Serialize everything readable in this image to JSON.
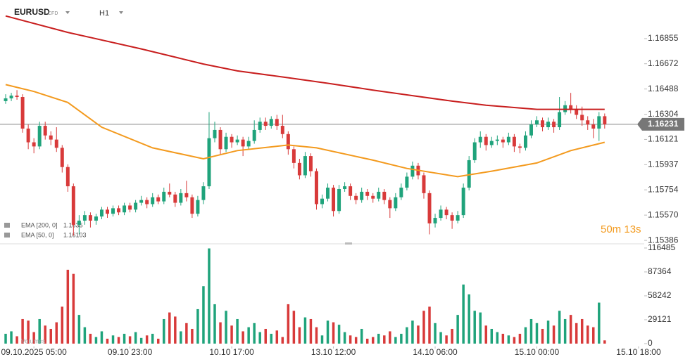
{
  "chart_data": {
    "type": "candlestick",
    "symbol": "EURUSD",
    "instrument_type": "CFD",
    "timeframe": "H1",
    "timer": "50m 13s",
    "last_price": 1.16231,
    "up_color": "#1fa37b",
    "down_color": "#d83a3a",
    "xlim": [
      -1,
      113
    ],
    "xticks": [
      {
        "value": 5,
        "label": "09.10.2025 05:00"
      },
      {
        "value": 22,
        "label": "09.10 23:00"
      },
      {
        "value": 40,
        "label": "10.10 17:00"
      },
      {
        "value": 58,
        "label": "13.10 12:00"
      },
      {
        "value": 76,
        "label": "14.10 06:00"
      },
      {
        "value": 94,
        "label": "15.10 00:00"
      },
      {
        "value": 112,
        "label": "15.10 18:00"
      }
    ],
    "ylim": [
      1.15361,
      1.17136
    ],
    "yticks": [
      1.16855,
      1.16672,
      1.16488,
      1.16304,
      1.16121,
      1.15937,
      1.15754,
      {
        "value": 1.1557,
        "label": "1.15570"
      },
      1.15386
    ],
    "ohlc": [
      [
        1.164,
        1.1645,
        1.1638,
        1.1642
      ],
      [
        1.1642,
        1.1646,
        1.164,
        1.1644
      ],
      [
        1.1644,
        1.1648,
        1.1641,
        1.1643
      ],
      [
        1.1643,
        1.1645,
        1.1617,
        1.162
      ],
      [
        1.162,
        1.1623,
        1.1605,
        1.161
      ],
      [
        1.161,
        1.1613,
        1.1602,
        1.1607
      ],
      [
        1.1607,
        1.1625,
        1.1605,
        1.1622
      ],
      [
        1.1622,
        1.1625,
        1.1612,
        1.1615
      ],
      [
        1.1615,
        1.1618,
        1.1608,
        1.1612
      ],
      [
        1.1612,
        1.1621,
        1.1603,
        1.1606
      ],
      [
        1.1606,
        1.1608,
        1.1588,
        1.1592
      ],
      [
        1.1592,
        1.1594,
        1.1574,
        1.1578
      ],
      [
        1.1578,
        1.158,
        1.1542,
        1.155
      ],
      [
        1.155,
        1.1557,
        1.1543,
        1.1553
      ],
      [
        1.1553,
        1.156,
        1.155,
        1.1557
      ],
      [
        1.1557,
        1.1559,
        1.1548,
        1.1553
      ],
      [
        1.1553,
        1.1558,
        1.155,
        1.1556
      ],
      [
        1.1556,
        1.1563,
        1.1554,
        1.1561
      ],
      [
        1.1561,
        1.1563,
        1.1555,
        1.1558
      ],
      [
        1.1558,
        1.1564,
        1.1556,
        1.1562
      ],
      [
        1.1562,
        1.1564,
        1.1557,
        1.1559
      ],
      [
        1.1559,
        1.1566,
        1.1557,
        1.1564
      ],
      [
        1.1564,
        1.1566,
        1.1559,
        1.1561
      ],
      [
        1.1561,
        1.1568,
        1.1559,
        1.1566
      ],
      [
        1.1566,
        1.1571,
        1.1564,
        1.1568
      ],
      [
        1.1568,
        1.157,
        1.1562,
        1.1565
      ],
      [
        1.1565,
        1.1573,
        1.1563,
        1.157
      ],
      [
        1.157,
        1.1572,
        1.1565,
        1.1567
      ],
      [
        1.1567,
        1.1577,
        1.1565,
        1.1574
      ],
      [
        1.1574,
        1.158,
        1.157,
        1.1572
      ],
      [
        1.1572,
        1.1574,
        1.1563,
        1.1566
      ],
      [
        1.1566,
        1.1576,
        1.1564,
        1.1573
      ],
      [
        1.1573,
        1.1582,
        1.1567,
        1.157
      ],
      [
        1.157,
        1.1572,
        1.1555,
        1.1558
      ],
      [
        1.1558,
        1.1571,
        1.1556,
        1.1568
      ],
      [
        1.1568,
        1.1581,
        1.1565,
        1.1578
      ],
      [
        1.1578,
        1.1632,
        1.1576,
        1.1613
      ],
      [
        1.1613,
        1.1625,
        1.161,
        1.1619
      ],
      [
        1.1619,
        1.1621,
        1.1601,
        1.1605
      ],
      [
        1.1605,
        1.1617,
        1.1603,
        1.1614
      ],
      [
        1.1614,
        1.1616,
        1.1606,
        1.161
      ],
      [
        1.161,
        1.1615,
        1.1608,
        1.1612
      ],
      [
        1.1612,
        1.1614,
        1.16,
        1.1607
      ],
      [
        1.1607,
        1.1614,
        1.1605,
        1.1611
      ],
      [
        1.1611,
        1.1626,
        1.1609,
        1.1619
      ],
      [
        1.1619,
        1.1628,
        1.1617,
        1.1625
      ],
      [
        1.1625,
        1.1628,
        1.1619,
        1.1622
      ],
      [
        1.1622,
        1.1629,
        1.162,
        1.1627
      ],
      [
        1.1627,
        1.163,
        1.1619,
        1.1622
      ],
      [
        1.1622,
        1.163,
        1.1613,
        1.1616
      ],
      [
        1.1616,
        1.1618,
        1.1601,
        1.1605
      ],
      [
        1.1605,
        1.1607,
        1.1591,
        1.1595
      ],
      [
        1.1595,
        1.1598,
        1.1583,
        1.1586
      ],
      [
        1.1586,
        1.1603,
        1.1584,
        1.16
      ],
      [
        1.16,
        1.1602,
        1.1585,
        1.1589
      ],
      [
        1.1589,
        1.1591,
        1.1561,
        1.1565
      ],
      [
        1.1565,
        1.1572,
        1.1562,
        1.1569
      ],
      [
        1.1569,
        1.158,
        1.1567,
        1.1577
      ],
      [
        1.1577,
        1.1579,
        1.1556,
        1.156
      ],
      [
        1.156,
        1.1579,
        1.1558,
        1.1576
      ],
      [
        1.1576,
        1.1581,
        1.1574,
        1.1578
      ],
      [
        1.1578,
        1.158,
        1.1568,
        1.1571
      ],
      [
        1.1571,
        1.1573,
        1.1565,
        1.1568
      ],
      [
        1.1568,
        1.1577,
        1.1566,
        1.1574
      ],
      [
        1.1574,
        1.1576,
        1.1568,
        1.1571
      ],
      [
        1.1571,
        1.1573,
        1.1566,
        1.1569
      ],
      [
        1.1569,
        1.1577,
        1.1567,
        1.1574
      ],
      [
        1.1574,
        1.1576,
        1.1565,
        1.1568
      ],
      [
        1.1568,
        1.157,
        1.1555,
        1.1562
      ],
      [
        1.1562,
        1.1573,
        1.156,
        1.157
      ],
      [
        1.157,
        1.158,
        1.1568,
        1.1577
      ],
      [
        1.1577,
        1.1588,
        1.1575,
        1.1585
      ],
      [
        1.1585,
        1.1596,
        1.1583,
        1.1593
      ],
      [
        1.1593,
        1.1595,
        1.1583,
        1.1586
      ],
      [
        1.1586,
        1.1588,
        1.1569,
        1.1573
      ],
      [
        1.1573,
        1.1575,
        1.1543,
        1.1551
      ],
      [
        1.1551,
        1.1558,
        1.1548,
        1.1555
      ],
      [
        1.1555,
        1.1564,
        1.1553,
        1.1561
      ],
      [
        1.1561,
        1.1563,
        1.1554,
        1.1557
      ],
      [
        1.1557,
        1.1559,
        1.1547,
        1.1553
      ],
      [
        1.1553,
        1.156,
        1.1551,
        1.1557
      ],
      [
        1.1557,
        1.158,
        1.1555,
        1.1577
      ],
      [
        1.1577,
        1.16,
        1.1575,
        1.1597
      ],
      [
        1.1597,
        1.1613,
        1.1595,
        1.161
      ],
      [
        1.161,
        1.1618,
        1.1606,
        1.1614
      ],
      [
        1.1614,
        1.1616,
        1.1604,
        1.1608
      ],
      [
        1.1608,
        1.1614,
        1.1606,
        1.1611
      ],
      [
        1.1611,
        1.1615,
        1.1608,
        1.1612
      ],
      [
        1.1612,
        1.1614,
        1.1606,
        1.161
      ],
      [
        1.161,
        1.1617,
        1.1608,
        1.1614
      ],
      [
        1.1614,
        1.1616,
        1.1603,
        1.1607
      ],
      [
        1.1607,
        1.1609,
        1.1602,
        1.1606
      ],
      [
        1.1606,
        1.1618,
        1.1604,
        1.1615
      ],
      [
        1.1615,
        1.1626,
        1.1613,
        1.1623
      ],
      [
        1.1623,
        1.1629,
        1.1621,
        1.1626
      ],
      [
        1.1626,
        1.1628,
        1.1618,
        1.1621
      ],
      [
        1.1621,
        1.1628,
        1.1619,
        1.1625
      ],
      [
        1.1625,
        1.1627,
        1.1617,
        1.1621
      ],
      [
        1.1621,
        1.1643,
        1.1619,
        1.1632
      ],
      [
        1.1632,
        1.164,
        1.163,
        1.1637
      ],
      [
        1.1637,
        1.1646,
        1.1631,
        1.1634
      ],
      [
        1.1634,
        1.1637,
        1.1627,
        1.163
      ],
      [
        1.163,
        1.1636,
        1.1622,
        1.1626
      ],
      [
        1.1626,
        1.1629,
        1.1619,
        1.1623
      ],
      [
        1.1623,
        1.1627,
        1.1613,
        1.162
      ],
      [
        1.162,
        1.1632,
        1.1611,
        1.1629
      ],
      [
        1.1629,
        1.1631,
        1.162,
        1.16231
      ]
    ],
    "ema": [
      {
        "name": "EMA [200, 0]",
        "last": 1.1635,
        "color": "#c81e1e",
        "x": [
          0,
          11,
          24,
          35,
          41,
          50,
          57,
          65,
          72,
          79,
          85,
          94,
          106
        ],
        "values": [
          1.1702,
          1.169,
          1.1678,
          1.1667,
          1.1662,
          1.1657,
          1.1653,
          1.1648,
          1.1644,
          1.164,
          1.1637,
          1.1634,
          1.1634
        ]
      },
      {
        "name": "EMA [50, 0]",
        "last": 1.16103,
        "color": "#f39a1e",
        "x": [
          0,
          5,
          11,
          17,
          26,
          35,
          41,
          50,
          55,
          65,
          71,
          80,
          86,
          94,
          100,
          106
        ],
        "values": [
          1.1652,
          1.1647,
          1.1639,
          1.1621,
          1.1606,
          1.1598,
          1.1604,
          1.1608,
          1.1606,
          1.1597,
          1.1591,
          1.1585,
          1.1589,
          1.1595,
          1.1604,
          1.161
        ]
      }
    ],
    "volume": {
      "name": "Volumes",
      "ylim": [
        0,
        119000
      ],
      "yticks": [
        116485,
        87364,
        58242,
        29121,
        0
      ],
      "values": [
        12000,
        15000,
        9000,
        30000,
        28000,
        14000,
        30000,
        22000,
        18000,
        26000,
        45000,
        90000,
        85000,
        35000,
        20000,
        12000,
        8000,
        15000,
        6000,
        10000,
        8000,
        12000,
        9000,
        14000,
        7000,
        10000,
        12000,
        6000,
        30000,
        38000,
        33000,
        15000,
        25000,
        18000,
        42000,
        70000,
        116000,
        48000,
        26000,
        40000,
        22000,
        30000,
        15000,
        20000,
        25000,
        14000,
        18000,
        12000,
        16000,
        8000,
        48000,
        40000,
        20000,
        32000,
        30000,
        20000,
        10000,
        28000,
        26000,
        23000,
        14000,
        10000,
        8000,
        18000,
        6000,
        8000,
        12000,
        10000,
        15000,
        8000,
        12000,
        20000,
        28000,
        22000,
        40000,
        45000,
        25000,
        14000,
        10000,
        18000,
        35000,
        72000,
        60000,
        40000,
        38000,
        22000,
        18000,
        14000,
        12000,
        10000,
        8000,
        12000,
        20000,
        30000,
        25000,
        18000,
        28000,
        22000,
        40000,
        30000,
        35000,
        25000,
        30000,
        22000,
        20000,
        50000,
        4000
      ]
    }
  }
}
